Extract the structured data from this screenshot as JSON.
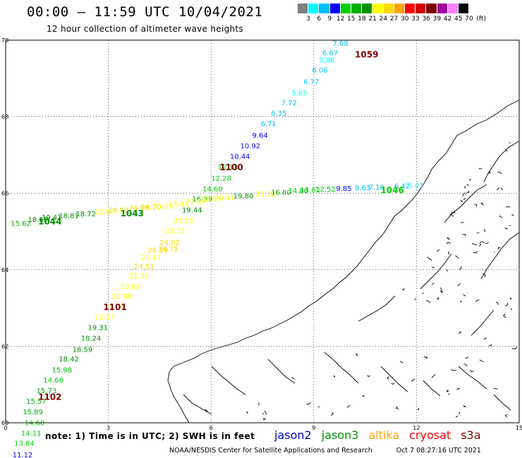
{
  "title": "00:00 – 11:59 UTC 10/04/2021",
  "subtitle": "12 hour collection of altimeter wave heights",
  "legend": {
    "unit": "(ft)",
    "bins": [
      {
        "label": "3",
        "color": "#7f7f7f"
      },
      {
        "label": "6",
        "color": "#00ffff"
      },
      {
        "label": "9",
        "color": "#00c0ff"
      },
      {
        "label": "12",
        "color": "#0000ff"
      },
      {
        "label": "15",
        "color": "#00d000"
      },
      {
        "label": "18",
        "color": "#00b000"
      },
      {
        "label": "21",
        "color": "#009000"
      },
      {
        "label": "24",
        "color": "#ffff00"
      },
      {
        "label": "27",
        "color": "#ffd700"
      },
      {
        "label": "30",
        "color": "#ffa500"
      },
      {
        "label": "33",
        "color": "#ff0000"
      },
      {
        "label": "36",
        "color": "#d00000"
      },
      {
        "label": "39",
        "color": "#800000"
      },
      {
        "label": "42",
        "color": "#a000a0"
      },
      {
        "label": "45",
        "color": "#ff80ff"
      },
      {
        "label": "70",
        "color": "#000000"
      }
    ]
  },
  "map": {
    "lon_range": [
      0,
      15
    ],
    "lat_range": [
      60,
      70
    ],
    "x_ticks": [
      "0",
      "3",
      "6",
      "9",
      "12",
      "15"
    ],
    "y_ticks": [
      "70",
      "68",
      "66",
      "64",
      "62",
      "60"
    ],
    "x_tick_values": [
      0,
      3,
      6,
      9,
      12,
      15
    ],
    "y_tick_values": [
      70,
      68,
      66,
      64,
      62,
      60
    ],
    "pass_ids": [
      {
        "label": "1059",
        "lon": 10.2,
        "lat": 69.55,
        "color": "#800000"
      },
      {
        "label": "1100",
        "lon": 6.25,
        "lat": 66.6,
        "color": "#800000"
      },
      {
        "label": "1101",
        "lon": 2.85,
        "lat": 62.95,
        "color": "#800000"
      },
      {
        "label": "1102",
        "lon": 0.95,
        "lat": 60.6,
        "color": "#800000"
      },
      {
        "label": "1043",
        "lon": 3.35,
        "lat": 65.4,
        "color": "#009000"
      },
      {
        "label": "1044",
        "lon": 0.95,
        "lat": 65.18,
        "color": "#009000"
      },
      {
        "label": "1046",
        "lon": 10.95,
        "lat": 66.0,
        "color": "#00d000"
      }
    ],
    "wave_heights": [
      {
        "text": "7.08",
        "lon": 9.55,
        "lat": 69.85,
        "color": "#00c0ff"
      },
      {
        "text": "6.67",
        "lon": 9.25,
        "lat": 69.6,
        "color": "#00c0ff"
      },
      {
        "text": "5.86",
        "lon": 9.15,
        "lat": 69.42,
        "color": "#00ffff"
      },
      {
        "text": "6.06",
        "lon": 8.95,
        "lat": 69.15,
        "color": "#00c0ff"
      },
      {
        "text": "6.77",
        "lon": 8.7,
        "lat": 68.85,
        "color": "#00c0ff"
      },
      {
        "text": "5.65",
        "lon": 8.35,
        "lat": 68.55,
        "color": "#00ffff"
      },
      {
        "text": "7.72",
        "lon": 8.05,
        "lat": 68.3,
        "color": "#00c0ff"
      },
      {
        "text": "6.35",
        "lon": 7.75,
        "lat": 68.03,
        "color": "#00c0ff"
      },
      {
        "text": "6.71",
        "lon": 7.45,
        "lat": 67.75,
        "color": "#00c0ff"
      },
      {
        "text": "9.64",
        "lon": 7.2,
        "lat": 67.45,
        "color": "#0000ff"
      },
      {
        "text": "10.92",
        "lon": 6.85,
        "lat": 67.17,
        "color": "#0000ff"
      },
      {
        "text": "10.44",
        "lon": 6.55,
        "lat": 66.9,
        "color": "#0000ff"
      },
      {
        "text": "12.13",
        "lon": 6.2,
        "lat": 66.62,
        "color": "#00d000"
      },
      {
        "text": "12.28",
        "lon": 6.0,
        "lat": 66.33,
        "color": "#00d000"
      },
      {
        "text": "14.60",
        "lon": 5.75,
        "lat": 66.05,
        "color": "#00d000"
      },
      {
        "text": "16.39",
        "lon": 5.45,
        "lat": 65.78,
        "color": "#00b000"
      },
      {
        "text": "19.44",
        "lon": 5.15,
        "lat": 65.5,
        "color": "#009000"
      },
      {
        "text": "21.15",
        "lon": 4.9,
        "lat": 65.22,
        "color": "#ffff00"
      },
      {
        "text": "23.33",
        "lon": 4.65,
        "lat": 64.95,
        "color": "#ffff00"
      },
      {
        "text": "24.02",
        "lon": 4.5,
        "lat": 64.65,
        "color": "#ffd700"
      },
      {
        "text": "24.75",
        "lon": 4.45,
        "lat": 64.48,
        "color": "#ffd700"
      },
      {
        "text": "24.59",
        "lon": 4.15,
        "lat": 64.45,
        "color": "#ffd700"
      },
      {
        "text": "21.47",
        "lon": 3.95,
        "lat": 64.25,
        "color": "#ffff00"
      },
      {
        "text": "24.51",
        "lon": 3.75,
        "lat": 64.02,
        "color": "#ffd700"
      },
      {
        "text": "21.31",
        "lon": 3.6,
        "lat": 63.78,
        "color": "#ffff00"
      },
      {
        "text": "23.08",
        "lon": 3.35,
        "lat": 63.5,
        "color": "#ffff00"
      },
      {
        "text": "22.88",
        "lon": 3.1,
        "lat": 63.24,
        "color": "#ffff00"
      },
      {
        "text": "21.09",
        "lon": 2.9,
        "lat": 62.96,
        "color": "#ffff00"
      },
      {
        "text": "22.17",
        "lon": 2.6,
        "lat": 62.7,
        "color": "#ffff00"
      },
      {
        "text": "19.31",
        "lon": 2.4,
        "lat": 62.42,
        "color": "#009000"
      },
      {
        "text": "18.24",
        "lon": 2.2,
        "lat": 62.15,
        "color": "#009000"
      },
      {
        "text": "18.59",
        "lon": 1.95,
        "lat": 61.85,
        "color": "#009000"
      },
      {
        "text": "18.42",
        "lon": 1.55,
        "lat": 61.6,
        "color": "#009000"
      },
      {
        "text": "15.98",
        "lon": 1.35,
        "lat": 61.32,
        "color": "#00b000"
      },
      {
        "text": "14.66",
        "lon": 1.1,
        "lat": 61.05,
        "color": "#00d000"
      },
      {
        "text": "15.73",
        "lon": 0.9,
        "lat": 60.77,
        "color": "#00b000"
      },
      {
        "text": "15.57",
        "lon": 0.6,
        "lat": 60.5,
        "color": "#00b000"
      },
      {
        "text": "15.89",
        "lon": 0.5,
        "lat": 60.22,
        "color": "#00b000"
      },
      {
        "text": "14.60",
        "lon": 0.55,
        "lat": 59.94,
        "color": "#00d000"
      },
      {
        "text": "14.11",
        "lon": 0.45,
        "lat": 59.66,
        "color": "#00d000"
      },
      {
        "text": "13.84",
        "lon": 0.25,
        "lat": 59.4,
        "color": "#00d000"
      },
      {
        "text": "11.12",
        "lon": 0.2,
        "lat": 59.1,
        "color": "#0000ff"
      },
      {
        "text": "15.62",
        "lon": 0.15,
        "lat": 65.15,
        "color": "#00b000"
      },
      {
        "text": "18.65",
        "lon": 0.65,
        "lat": 65.25,
        "color": "#009000"
      },
      {
        "text": "19.41",
        "lon": 1.05,
        "lat": 65.3,
        "color": "#009000"
      },
      {
        "text": "18.81",
        "lon": 1.55,
        "lat": 65.35,
        "color": "#009000"
      },
      {
        "text": "18.72",
        "lon": 2.05,
        "lat": 65.4,
        "color": "#009000"
      },
      {
        "text": "22.87",
        "lon": 2.6,
        "lat": 65.45,
        "color": "#ffff00"
      },
      {
        "text": "24.09",
        "lon": 3.0,
        "lat": 65.5,
        "color": "#ffd700"
      },
      {
        "text": "24.58",
        "lon": 3.6,
        "lat": 65.55,
        "color": "#ffd700"
      },
      {
        "text": "24.20",
        "lon": 3.95,
        "lat": 65.57,
        "color": "#ffd700"
      },
      {
        "text": "23.05",
        "lon": 4.3,
        "lat": 65.6,
        "color": "#ffff00"
      },
      {
        "text": "23.43",
        "lon": 4.75,
        "lat": 65.65,
        "color": "#ffff00"
      },
      {
        "text": "22.67",
        "lon": 5.25,
        "lat": 65.72,
        "color": "#ffff00"
      },
      {
        "text": "22.85",
        "lon": 5.7,
        "lat": 65.78,
        "color": "#ffff00"
      },
      {
        "text": "20.41",
        "lon": 6.1,
        "lat": 65.82,
        "color": "#ffff00"
      },
      {
        "text": "19.80",
        "lon": 6.65,
        "lat": 65.87,
        "color": "#009000"
      },
      {
        "text": "21.22",
        "lon": 7.3,
        "lat": 65.92,
        "color": "#ffff00"
      },
      {
        "text": "16.80",
        "lon": 7.75,
        "lat": 65.96,
        "color": "#00b000"
      },
      {
        "text": "14.86",
        "lon": 8.25,
        "lat": 66.0,
        "color": "#00d000"
      },
      {
        "text": "13.61",
        "lon": 8.6,
        "lat": 66.02,
        "color": "#00d000"
      },
      {
        "text": "12.52",
        "lon": 9.05,
        "lat": 66.04,
        "color": "#00d000"
      },
      {
        "text": "9.85",
        "lon": 9.65,
        "lat": 66.06,
        "color": "#0000ff"
      },
      {
        "text": "8.63",
        "lon": 10.2,
        "lat": 66.08,
        "color": "#00c0ff"
      },
      {
        "text": "7.10",
        "lon": 10.6,
        "lat": 66.1,
        "color": "#00c0ff"
      },
      {
        "text": "6.42",
        "lon": 11.35,
        "lat": 66.12,
        "color": "#00c0ff"
      },
      {
        "text": "5.41",
        "lon": 11.75,
        "lat": 66.14,
        "color": "#00ffff"
      }
    ]
  },
  "note": "note: 1) Time is in UTC; 2) SWH is in feet",
  "satellites": [
    {
      "name": "jason2",
      "color": "#0000cc"
    },
    {
      "name": "jason3",
      "color": "#009000"
    },
    {
      "name": "altika",
      "color": "#ffa500"
    },
    {
      "name": "cryosat",
      "color": "#ff0000"
    },
    {
      "name": "s3a",
      "color": "#800000"
    }
  ],
  "footer": {
    "credit": "NOAA/NESDIS Center for Satellite Applications and Research",
    "timestamp": "Oct  7 08:27:16 UTC 2021"
  }
}
